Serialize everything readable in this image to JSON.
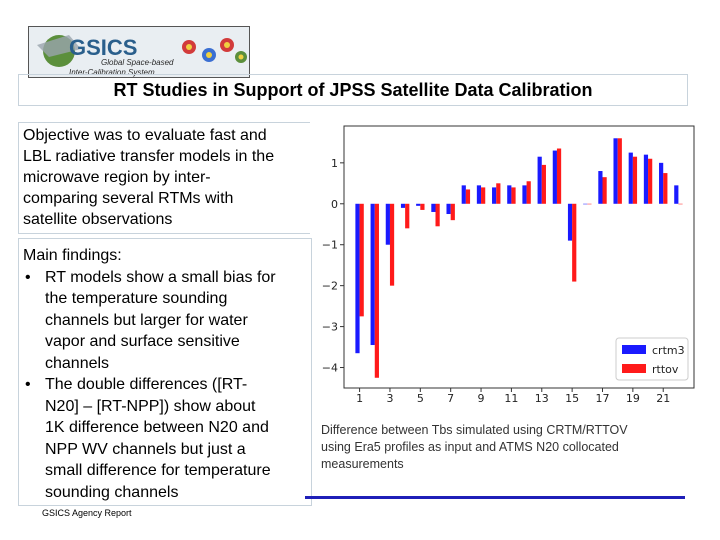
{
  "logo": {
    "text": "GSICS",
    "tagline_1": "Global Space-based",
    "tagline_2": "Inter-Calibration System"
  },
  "title": "RT Studies in Support of JPSS Satellite Data Calibration",
  "objective": [
    "Objective was to evaluate fast and",
    "LBL radiative transfer models in the",
    "microwave region by inter-",
    "comparing several RTMs with",
    "satellite observations"
  ],
  "findings": {
    "heading": "Main findings:",
    "items": [
      {
        "bullet": "•",
        "lines": [
          "RT models show a small bias for",
          "the temperature sounding",
          "channels but larger for water",
          "vapor and surface sensitive",
          "channels"
        ]
      },
      {
        "bullet": "•",
        "lines": [
          "The double differences ([RT-",
          "N20] – [RT-NPP]) show about",
          "1K difference between N20 and",
          "NPP WV channels but just a",
          "small difference for temperature",
          "sounding channels"
        ]
      }
    ]
  },
  "footer": "GSICS Agency Report",
  "caption": [
    "Difference between Tbs simulated using CRTM/RTTOV",
    "using Era5 profiles as input and ATMS N20 collocated",
    "measurements"
  ],
  "colors": {
    "crtm3": "#1a1aff",
    "rttov": "#ff1a1a",
    "rule": "#1f1fb8"
  },
  "chart_data": {
    "type": "bar",
    "x": [
      1,
      2,
      3,
      4,
      5,
      6,
      7,
      8,
      9,
      10,
      11,
      12,
      13,
      14,
      15,
      16,
      17,
      18,
      19,
      20,
      21,
      22
    ],
    "x_ticks": [
      "1",
      "3",
      "5",
      "7",
      "9",
      "11",
      "13",
      "15",
      "17",
      "19",
      "21"
    ],
    "y_ticks": [
      "1",
      "0",
      "−1",
      "−2",
      "−3",
      "−4"
    ],
    "ylim": [
      -4.5,
      1.9
    ],
    "legend_position": "bottom-right",
    "series": [
      {
        "name": "crtm3",
        "values": [
          -3.65,
          -3.45,
          -1.0,
          -0.1,
          -0.05,
          -0.2,
          -0.25,
          0.45,
          0.45,
          0.4,
          0.45,
          0.45,
          1.15,
          1.3,
          -0.9,
          0.0,
          0.8,
          1.6,
          1.25,
          1.2,
          1.0,
          0.45
        ]
      },
      {
        "name": "rttov",
        "values": [
          -2.75,
          -4.25,
          -2.0,
          -0.6,
          -0.15,
          -0.55,
          -0.4,
          0.35,
          0.4,
          0.5,
          0.4,
          0.55,
          0.95,
          1.35,
          -1.9,
          0.0,
          0.65,
          1.6,
          1.15,
          1.1,
          0.75,
          0.0
        ]
      }
    ]
  }
}
